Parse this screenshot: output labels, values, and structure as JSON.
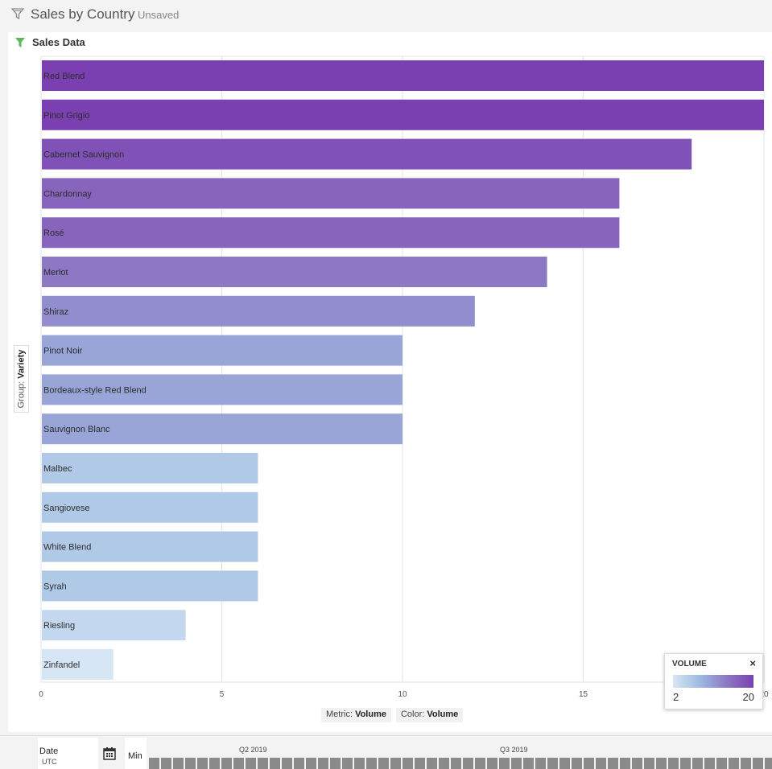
{
  "header": {
    "title": "Sales by Country",
    "status": "Unsaved"
  },
  "panel": {
    "title": "Sales Data",
    "group_prefix": "Group:",
    "group_value": "Variety",
    "metric_prefix": "Metric:",
    "metric_value": "Volume",
    "color_prefix": "Color:",
    "color_value": "Volume"
  },
  "chart_data": {
    "type": "bar",
    "orientation": "horizontal",
    "categories": [
      "Red Blend",
      "Pinot Grigio",
      "Cabernet Sauvignon",
      "Chardonnay",
      "Rosé",
      "Merlot",
      "Shiraz",
      "Pinot Noir",
      "Bordeaux-style Red Blend",
      "Sauvignon Blanc",
      "Malbec",
      "Sangiovese",
      "White Blend",
      "Syrah",
      "Riesling",
      "Zinfandel"
    ],
    "values": [
      20,
      20,
      18,
      16,
      16,
      14,
      12,
      10,
      10,
      10,
      6,
      6,
      6,
      6,
      4,
      2
    ],
    "xticks": [
      "0",
      "5",
      "10",
      "15",
      "20"
    ],
    "xlim": [
      0,
      20
    ],
    "grid": true,
    "color_scale": {
      "min": 2,
      "max": 20,
      "colors": [
        "#d6e6f5",
        "#9dbbdf",
        "#8d78c4",
        "#7a3fb0"
      ]
    }
  },
  "legend": {
    "title": "VOLUME",
    "min_label": "2",
    "max_label": "20",
    "close_label": "×"
  },
  "timeline": {
    "date_label": "Date",
    "timezone": "UTC",
    "granularity": "Min",
    "quarters": [
      "Q2 2019",
      "Q3 2019"
    ]
  }
}
